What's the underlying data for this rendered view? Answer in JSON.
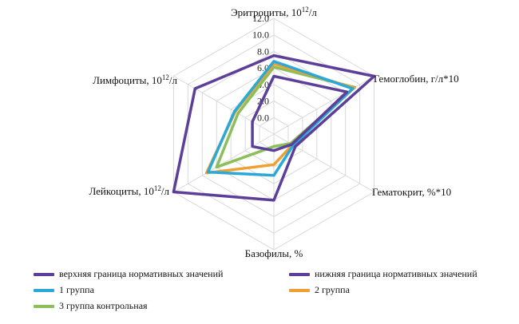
{
  "chart_data": {
    "type": "radar",
    "axes": [
      {
        "key": "erythrocytes",
        "label": "Эритроциты, 10",
        "sup": "12",
        "tail": "/л"
      },
      {
        "key": "hemoglobin",
        "label": "Гемоглобин, г/л*10",
        "sup": "",
        "tail": ""
      },
      {
        "key": "hematocrit",
        "label": "Гематокрит, %*10",
        "sup": "",
        "tail": ""
      },
      {
        "key": "basophils",
        "label": "Базофилы, %",
        "sup": "",
        "tail": ""
      },
      {
        "key": "leukocytes",
        "label": "Лейкоциты, 10",
        "sup": "12",
        "tail": "/л"
      },
      {
        "key": "lymphocytes",
        "label": "Лимфоциты, 10",
        "sup": "12",
        "tail": "/л"
      }
    ],
    "r_ticks": [
      "0.0",
      "2.0",
      "4.0",
      "6.0",
      "8.0",
      "10.0",
      "12.0"
    ],
    "r_range": [
      -2,
      12
    ],
    "grid": true,
    "legend_position": "bottom",
    "series": [
      {
        "name": "верхняя граница нормативных значений",
        "color": "#5b3f99",
        "values": [
          7.5,
          12.0,
          1.0,
          6.0,
          12.0,
          9.0
        ]
      },
      {
        "name": "нижняя граница нормативных значений",
        "color": "#5b3f99",
        "values": [
          5.0,
          8.2,
          0.5,
          0.0,
          1.0,
          1.0
        ]
      },
      {
        "name": "1 группа",
        "color": "#2aa9d8",
        "values": [
          6.8,
          9.0,
          0.7,
          3.0,
          7.2,
          3.5
        ]
      },
      {
        "name": "2 группа",
        "color": "#f0a030",
        "values": [
          6.5,
          9.2,
          0.6,
          1.7,
          7.4,
          3.4
        ]
      },
      {
        "name": "3 группа контрольная",
        "color": "#8cbf5a",
        "values": [
          6.1,
          9.3,
          0.3,
          -0.5,
          6.0,
          3.0
        ]
      }
    ]
  }
}
